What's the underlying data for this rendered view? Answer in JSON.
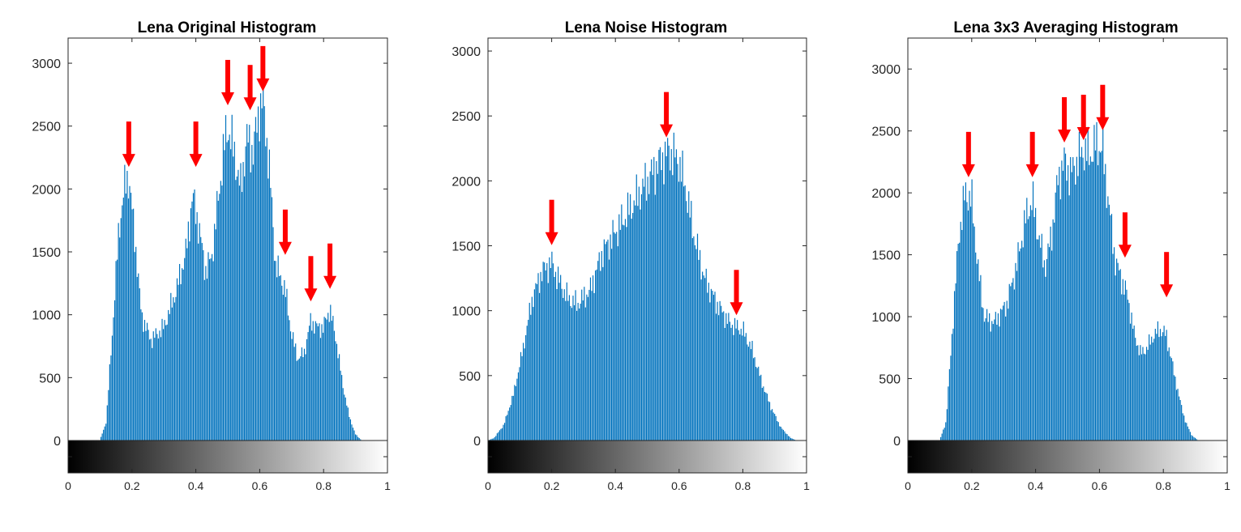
{
  "colors": {
    "bar": "#0072BD",
    "arrow": "#FF0000",
    "axis": "#262626"
  },
  "chart_data": [
    {
      "type": "bar",
      "title": "Lena Original Histogram",
      "xlim": [
        0,
        1
      ],
      "ylim": [
        -250,
        3200
      ],
      "yticks": [
        0,
        500,
        1000,
        1500,
        2000,
        2500,
        3000
      ],
      "xticks": [
        0,
        0.2,
        0.4,
        0.6,
        0.8,
        1
      ],
      "ytick_labels": [
        "0",
        "500",
        "1000",
        "1500",
        "2000",
        "2500",
        "3000"
      ],
      "xtick_labels": [
        "0",
        "0.2",
        "0.4",
        "0.6",
        "0.8",
        "1"
      ],
      "colorbar": "grayscale",
      "bins": 256,
      "profile_x": [
        0.0,
        0.1,
        0.12,
        0.14,
        0.16,
        0.18,
        0.19,
        0.21,
        0.23,
        0.26,
        0.3,
        0.34,
        0.37,
        0.39,
        0.41,
        0.43,
        0.45,
        0.47,
        0.49,
        0.5,
        0.52,
        0.54,
        0.56,
        0.58,
        0.6,
        0.61,
        0.63,
        0.65,
        0.68,
        0.7,
        0.72,
        0.74,
        0.76,
        0.78,
        0.8,
        0.82,
        0.84,
        0.86,
        0.88,
        0.9,
        0.92,
        1.0
      ],
      "profile_y": [
        0,
        0,
        150,
        900,
        1700,
        2050,
        2100,
        1600,
        1000,
        800,
        900,
        1200,
        1500,
        1950,
        1700,
        1350,
        1450,
        1900,
        2350,
        2500,
        2300,
        2000,
        2400,
        2300,
        2650,
        2700,
        2200,
        1400,
        1200,
        850,
        650,
        700,
        950,
        900,
        900,
        1050,
        800,
        450,
        200,
        50,
        0,
        0
      ],
      "arrows": [
        0.19,
        0.4,
        0.5,
        0.57,
        0.61,
        0.68,
        0.76,
        0.82
      ],
      "arrow_tips": [
        2150,
        2150,
        2640,
        2600,
        2750,
        1450,
        1080,
        1180
      ]
    },
    {
      "type": "bar",
      "title": "Lena Noise Histogram",
      "xlim": [
        0,
        1
      ],
      "ylim": [
        -250,
        3100
      ],
      "yticks": [
        0,
        500,
        1000,
        1500,
        2000,
        2500,
        3000
      ],
      "xticks": [
        0,
        0.2,
        0.4,
        0.6,
        0.8,
        1
      ],
      "ytick_labels": [
        "0",
        "500",
        "1000",
        "1500",
        "2000",
        "2500",
        "3000"
      ],
      "xtick_labels": [
        "0",
        "0.2",
        "0.4",
        "0.6",
        "0.8",
        "1"
      ],
      "colorbar": "grayscale",
      "bins": 256,
      "profile_x": [
        0.0,
        0.02,
        0.05,
        0.08,
        0.11,
        0.14,
        0.17,
        0.2,
        0.22,
        0.25,
        0.28,
        0.32,
        0.36,
        0.4,
        0.45,
        0.5,
        0.54,
        0.57,
        0.6,
        0.62,
        0.65,
        0.68,
        0.72,
        0.76,
        0.8,
        0.83,
        0.86,
        0.89,
        0.92,
        0.95,
        0.97,
        1.0
      ],
      "profile_y": [
        0,
        20,
        120,
        350,
        700,
        1100,
        1300,
        1370,
        1250,
        1100,
        1050,
        1150,
        1450,
        1600,
        1800,
        2000,
        2150,
        2230,
        2150,
        1950,
        1550,
        1250,
        1050,
        900,
        850,
        700,
        450,
        250,
        100,
        20,
        0,
        0
      ],
      "arrows": [
        0.2,
        0.56,
        0.78
      ],
      "arrow_tips": [
        1480,
        2310,
        940
      ]
    },
    {
      "type": "bar",
      "title": "Lena 3x3 Averaging Histogram",
      "xlim": [
        0,
        1
      ],
      "ylim": [
        -250,
        3250
      ],
      "yticks": [
        0,
        500,
        1000,
        1500,
        2000,
        2500,
        3000
      ],
      "xticks": [
        0,
        0.2,
        0.4,
        0.6,
        0.8,
        1
      ],
      "ytick_labels": [
        "0",
        "500",
        "1000",
        "1500",
        "2000",
        "2500",
        "3000"
      ],
      "xtick_labels": [
        "0",
        "0.2",
        "0.4",
        "0.6",
        "0.8",
        "1"
      ],
      "colorbar": "grayscale",
      "bins": 256,
      "profile_x": [
        0.0,
        0.1,
        0.12,
        0.14,
        0.16,
        0.18,
        0.2,
        0.22,
        0.24,
        0.27,
        0.31,
        0.34,
        0.37,
        0.39,
        0.41,
        0.43,
        0.45,
        0.47,
        0.49,
        0.51,
        0.53,
        0.55,
        0.57,
        0.59,
        0.61,
        0.63,
        0.65,
        0.67,
        0.69,
        0.71,
        0.73,
        0.75,
        0.77,
        0.79,
        0.81,
        0.83,
        0.85,
        0.87,
        0.89,
        0.91,
        1.0
      ],
      "profile_y": [
        0,
        0,
        150,
        900,
        1650,
        2000,
        1950,
        1400,
        1000,
        950,
        1100,
        1400,
        1800,
        1950,
        1650,
        1400,
        1650,
        2100,
        2250,
        2150,
        2250,
        2350,
        2300,
        2400,
        2350,
        1900,
        1450,
        1300,
        1150,
        850,
        700,
        750,
        850,
        900,
        850,
        600,
        350,
        150,
        40,
        0,
        0
      ],
      "arrows": [
        0.19,
        0.39,
        0.49,
        0.55,
        0.61,
        0.68,
        0.81
      ],
      "arrow_tips": [
        2100,
        2100,
        2380,
        2400,
        2480,
        1450,
        1130
      ]
    }
  ]
}
